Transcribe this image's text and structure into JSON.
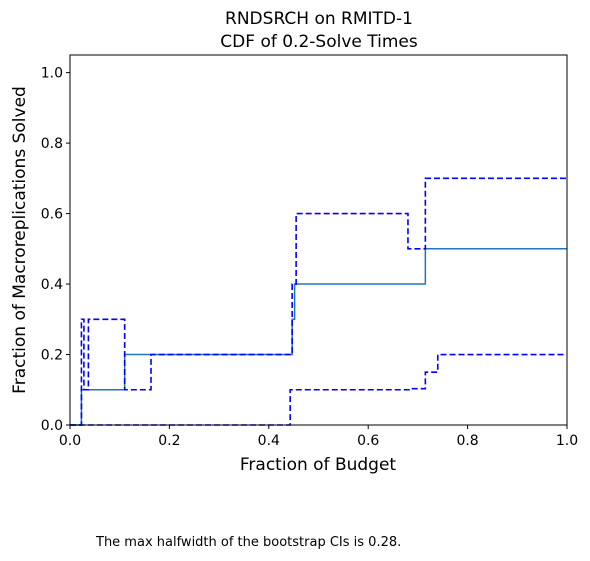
{
  "chart_data": {
    "type": "line",
    "title": "RNDSRCH on RMITD-1",
    "subtitle": "CDF of 0.2-Solve Times",
    "xlabel": "Fraction of Budget",
    "ylabel": "Fraction of Macroreplications Solved",
    "xlim": [
      0,
      1
    ],
    "ylim": [
      0,
      1.05
    ],
    "xticks": [
      0,
      0.2,
      0.4,
      0.6,
      0.8,
      1.0
    ],
    "xtick_labels": [
      "0.0",
      "0.2",
      "0.4",
      "0.6",
      "0.8",
      "1.0"
    ],
    "yticks": [
      0,
      0.2,
      0.4,
      0.6,
      0.8,
      1.0
    ],
    "ytick_labels": [
      "0.0",
      "0.2",
      "0.4",
      "0.6",
      "0.8",
      "1.0"
    ],
    "grid": false,
    "series": [
      {
        "role": "estimate",
        "color": "#1f77b4",
        "style": "solid",
        "x": [
          0,
          0.023,
          0.023,
          0.11,
          0.11,
          0.447,
          0.447,
          0.452,
          0.452,
          0.715,
          0.715,
          1.0
        ],
        "y": [
          0,
          0,
          0.1,
          0.1,
          0.2,
          0.2,
          0.3,
          0.3,
          0.4,
          0.4,
          0.5,
          0.5
        ]
      },
      {
        "role": "upper-bound",
        "color": "#0000ff",
        "style": "dashed",
        "x": [
          0,
          0.023,
          0.023,
          0.028,
          0.028,
          0.037,
          0.037,
          0.11,
          0.11,
          0.163,
          0.163,
          0.447,
          0.447,
          0.455,
          0.455,
          0.68,
          0.68,
          0.715,
          0.715,
          1.0
        ],
        "y": [
          0,
          0,
          0.3,
          0.3,
          0.1,
          0.1,
          0.3,
          0.3,
          0.1,
          0.1,
          0.2,
          0.2,
          0.4,
          0.4,
          0.6,
          0.6,
          0.5,
          0.5,
          0.7,
          0.7
        ]
      },
      {
        "role": "lower-bound",
        "color": "#0000ff",
        "style": "dashed",
        "x": [
          0,
          0.443,
          0.443,
          0.685,
          0.685,
          0.715,
          0.715,
          0.74,
          0.74,
          1.0
        ],
        "y": [
          0,
          0,
          0.1,
          0.1,
          0.103,
          0.103,
          0.15,
          0.15,
          0.2,
          0.2
        ]
      }
    ]
  },
  "footnote": "The max halfwidth of the bootstrap CIs is 0.28."
}
